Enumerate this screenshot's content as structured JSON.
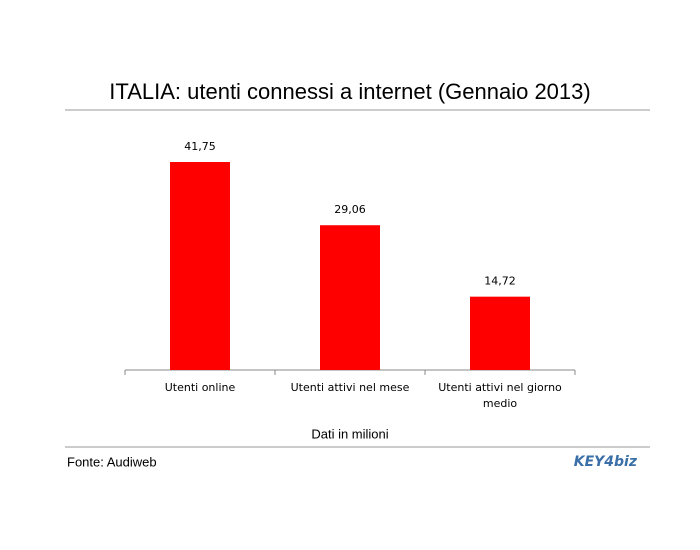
{
  "chart_data": {
    "type": "bar",
    "title": "ITALIA: utenti connessi a internet (Gennaio 2013)",
    "categories": [
      "Utenti online",
      "Utenti attivi nel mese",
      "Utenti attivi nel giorno medio"
    ],
    "values": [
      41.75,
      29.06,
      14.72
    ],
    "value_labels": [
      "41,75",
      "29,06",
      "14,72"
    ],
    "color": "#ff0000",
    "x_label": "Dati in milioni"
  },
  "footer": {
    "source": "Fonte: Audiweb",
    "logo": "KEY4biz"
  }
}
